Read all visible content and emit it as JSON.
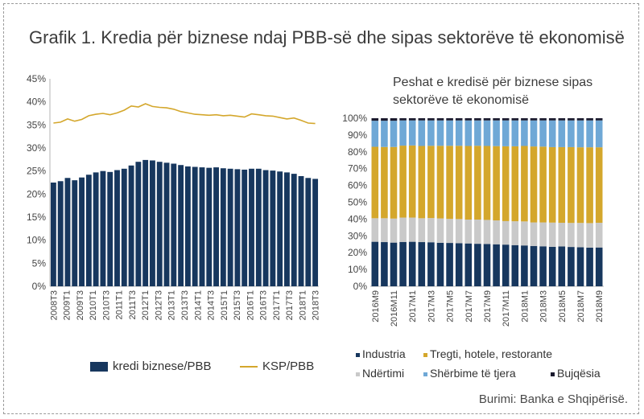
{
  "title": "Grafik 1. Kredia për biznese ndaj PBB-së dhe sipas sektorëve të ekonomisë",
  "source": "Burimi: Banka e Shqipërisë.",
  "colors": {
    "navy": "#17375e",
    "gold": "#d4a72c",
    "grey": "#c9c9c9",
    "light_blue": "#6fa8d6",
    "dark": "#1a1a2e"
  },
  "chart_data": [
    {
      "type": "bar",
      "ylim": [
        0,
        45
      ],
      "yticks": [
        "0%",
        "5%",
        "10%",
        "15%",
        "20%",
        "25%",
        "30%",
        "35%",
        "40%",
        "45%"
      ],
      "xtick_labels": [
        "2008T3",
        "2009T1",
        "2009T3",
        "2010T1",
        "2010T3",
        "2011T1",
        "2011T3",
        "2012T1",
        "2012T3",
        "2013T1",
        "2013T3",
        "2014T1",
        "2014T3",
        "2015T1",
        "2015T3",
        "2016T1",
        "2016T3",
        "2017T1",
        "2017T3",
        "2018T1",
        "2018T3"
      ],
      "series": [
        {
          "name": "kredi biznese/PBB",
          "type": "bar",
          "values": [
            22.5,
            22.8,
            23.5,
            23.0,
            23.6,
            24.2,
            24.7,
            25.0,
            24.8,
            25.2,
            25.5,
            26.2,
            27.0,
            27.4,
            27.3,
            27.0,
            26.8,
            26.6,
            26.3,
            26.0,
            25.9,
            25.8,
            25.7,
            25.8,
            25.6,
            25.5,
            25.4,
            25.3,
            25.5,
            25.5,
            25.2,
            25.1,
            24.9,
            24.7,
            24.4,
            23.9,
            23.5,
            23.3
          ]
        },
        {
          "name": "KSP/PBB",
          "type": "line",
          "values": [
            35.4,
            35.6,
            36.3,
            35.8,
            36.2,
            37.0,
            37.3,
            37.5,
            37.2,
            37.6,
            38.2,
            39.1,
            38.9,
            39.6,
            39.0,
            38.8,
            38.7,
            38.4,
            37.9,
            37.6,
            37.3,
            37.2,
            37.1,
            37.2,
            37.0,
            37.1,
            36.9,
            36.7,
            37.4,
            37.2,
            37.0,
            36.9,
            36.6,
            36.3,
            36.5,
            36.0,
            35.4,
            35.3
          ]
        }
      ]
    },
    {
      "type": "bar",
      "stacked": true,
      "title": "Peshat e kredisë për biznese sipas sektorëve të ekonomisë",
      "ylim": [
        0,
        100
      ],
      "yticks": [
        "0%",
        "10%",
        "20%",
        "30%",
        "40%",
        "50%",
        "60%",
        "70%",
        "80%",
        "90%",
        "100%"
      ],
      "xtick_labels": [
        "2016M9",
        "2016M11",
        "2017M1",
        "2017M3",
        "2017M5",
        "2017M7",
        "2017M9",
        "2017M11",
        "2018M1",
        "2018M3",
        "2018M5",
        "2018M7",
        "2018M9"
      ],
      "series": [
        {
          "name": "Industria",
          "color": "#17375e",
          "values": [
            26.5,
            26.3,
            26.0,
            26.4,
            26.5,
            26.3,
            26.2,
            25.9,
            25.8,
            25.6,
            25.5,
            25.3,
            25.2,
            25.0,
            24.8,
            24.5,
            24.3,
            24.0,
            23.8,
            23.5,
            23.7,
            23.4,
            23.2,
            23.0,
            23.1
          ]
        },
        {
          "name": "Ndërtimi",
          "color": "#c9c9c9",
          "values": [
            14.0,
            14.2,
            14.3,
            14.5,
            14.4,
            14.2,
            14.4,
            14.5,
            14.3,
            14.4,
            14.2,
            14.4,
            14.3,
            14.2,
            14.0,
            14.2,
            14.3,
            14.0,
            14.2,
            14.4,
            14.1,
            14.3,
            14.5,
            14.6,
            14.7
          ]
        },
        {
          "name": "Tregti, hotele, restorante",
          "color": "#d4a72c",
          "values": [
            42.5,
            42.4,
            42.6,
            42.8,
            42.9,
            43.0,
            43.0,
            43.2,
            43.5,
            43.6,
            43.8,
            43.9,
            44.0,
            44.2,
            44.5,
            44.6,
            44.9,
            45.2,
            45.1,
            44.9,
            45.0,
            45.1,
            45.0,
            45.1,
            44.9
          ]
        },
        {
          "name": "Shërbime të tjera",
          "color": "#6fa8d6",
          "values": [
            15.5,
            15.6,
            15.6,
            15.0,
            14.9,
            15.2,
            15.1,
            15.1,
            15.1,
            15.1,
            15.2,
            15.1,
            15.2,
            15.3,
            15.4,
            15.4,
            15.2,
            15.5,
            15.6,
            15.9,
            15.9,
            15.9,
            16.0,
            16.0,
            16.0
          ]
        },
        {
          "name": "Bujqësia",
          "color": "#1a1a2e",
          "values": [
            1.5,
            1.5,
            1.5,
            1.3,
            1.3,
            1.3,
            1.3,
            1.3,
            1.3,
            1.3,
            1.3,
            1.3,
            1.3,
            1.3,
            1.3,
            1.3,
            1.3,
            1.3,
            1.3,
            1.3,
            1.3,
            1.3,
            1.3,
            1.3,
            1.3
          ]
        }
      ]
    }
  ],
  "legend_left": [
    {
      "label": "kredi biznese/PBB",
      "color": "#17375e",
      "shape": "bar"
    },
    {
      "label": "KSP/PBB",
      "color": "#d4a72c",
      "shape": "line"
    }
  ],
  "legend_right": [
    {
      "label": "Industria",
      "color": "#17375e"
    },
    {
      "label": "Tregti, hotele, restorante",
      "color": "#d4a72c"
    },
    {
      "label": "Ndërtimi",
      "color": "#c9c9c9"
    },
    {
      "label": "Shërbime të tjera",
      "color": "#6fa8d6"
    },
    {
      "label": "Bujqësia",
      "color": "#1a1a2e"
    }
  ]
}
